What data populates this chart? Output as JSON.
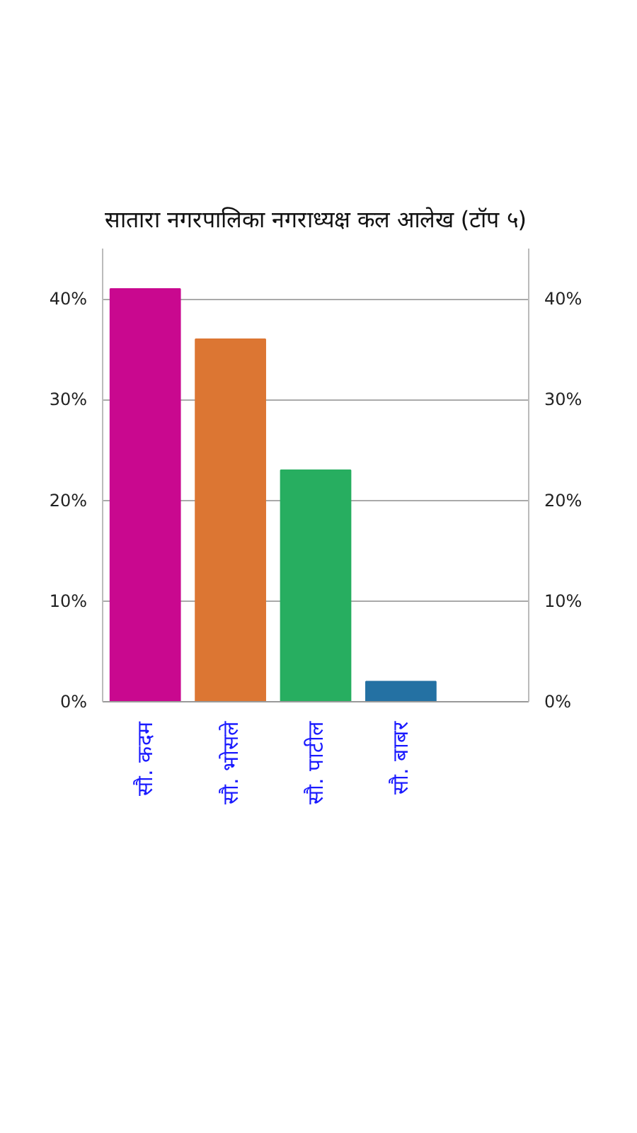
{
  "chart_data": {
    "type": "bar",
    "title": "सातारा नगरपालिका नगराध्यक्ष कल आलेख (टॉप ५)",
    "categories": [
      "सौ. कदम",
      "सौ. भोसले",
      "सौ. पाटील",
      "सौ. बाबर",
      null
    ],
    "values": [
      41,
      36,
      23,
      2,
      null
    ],
    "colors": [
      "#c9088f",
      "#dc7633",
      "#27ae60",
      "#2471a3",
      null
    ],
    "ylim": [
      0,
      45
    ],
    "yticks": [
      {
        "value": 0,
        "label": "0%"
      },
      {
        "value": 10,
        "label": "10%"
      },
      {
        "value": 20,
        "label": "20%"
      },
      {
        "value": 30,
        "label": "30%"
      },
      {
        "value": 40,
        "label": "40%"
      }
    ],
    "y2lim": [
      0,
      45
    ],
    "y2ticks": [
      {
        "value": 0,
        "label": "0%"
      },
      {
        "value": 10,
        "label": "10%"
      },
      {
        "value": 20,
        "label": "20%"
      },
      {
        "value": 30,
        "label": "30%"
      },
      {
        "value": 40,
        "label": "40%"
      }
    ],
    "grid": "y"
  }
}
